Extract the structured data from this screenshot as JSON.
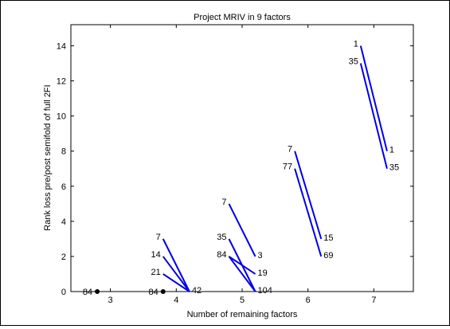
{
  "chart_data": {
    "type": "line",
    "title": "Project MRIV in 9 factors",
    "xlabel": "Number of remaining factors",
    "ylabel": "Rank loss pre/post semifold of full 2FI",
    "xlim": [
      2.4,
      7.6
    ],
    "ylim": [
      0,
      15.2
    ],
    "xticks": [
      3,
      4,
      5,
      6,
      7
    ],
    "yticks": [
      0,
      2,
      4,
      6,
      8,
      10,
      12,
      14
    ],
    "grid": false,
    "line_color": "#0000dd",
    "dot_color": "#000000",
    "segments": [
      {
        "x": [
          3.8,
          4.2
        ],
        "y": [
          3,
          0
        ],
        "left_label": "7",
        "right_label": "42"
      },
      {
        "x": [
          3.8,
          4.2
        ],
        "y": [
          2,
          0
        ],
        "left_label": "14",
        "right_label": ""
      },
      {
        "x": [
          3.8,
          4.2
        ],
        "y": [
          1,
          0
        ],
        "left_label": "21",
        "right_label": ""
      },
      {
        "x": [
          4.8,
          5.2
        ],
        "y": [
          5,
          2
        ],
        "left_label": "7",
        "right_label": "3"
      },
      {
        "x": [
          4.8,
          5.2
        ],
        "y": [
          3,
          0
        ],
        "left_label": "35",
        "right_label": ""
      },
      {
        "x": [
          4.8,
          5.2
        ],
        "y": [
          2,
          1
        ],
        "left_label": "84",
        "right_label": "19"
      },
      {
        "x": [
          4.8,
          5.2
        ],
        "y": [
          2,
          0
        ],
        "left_label": "",
        "right_label": "104"
      },
      {
        "x": [
          5.8,
          6.2
        ],
        "y": [
          8,
          3
        ],
        "left_label": "7",
        "right_label": "15"
      },
      {
        "x": [
          5.8,
          6.2
        ],
        "y": [
          7,
          2
        ],
        "left_label": "77",
        "right_label": "69"
      },
      {
        "x": [
          6.8,
          7.2
        ],
        "y": [
          14,
          8
        ],
        "left_label": "1",
        "right_label": "1"
      },
      {
        "x": [
          6.8,
          7.2
        ],
        "y": [
          13,
          7
        ],
        "left_label": "35",
        "right_label": "35"
      }
    ],
    "points": [
      {
        "x": 2.8,
        "y": 0,
        "label": "84"
      },
      {
        "x": 3.8,
        "y": 0,
        "label": "84"
      }
    ]
  }
}
